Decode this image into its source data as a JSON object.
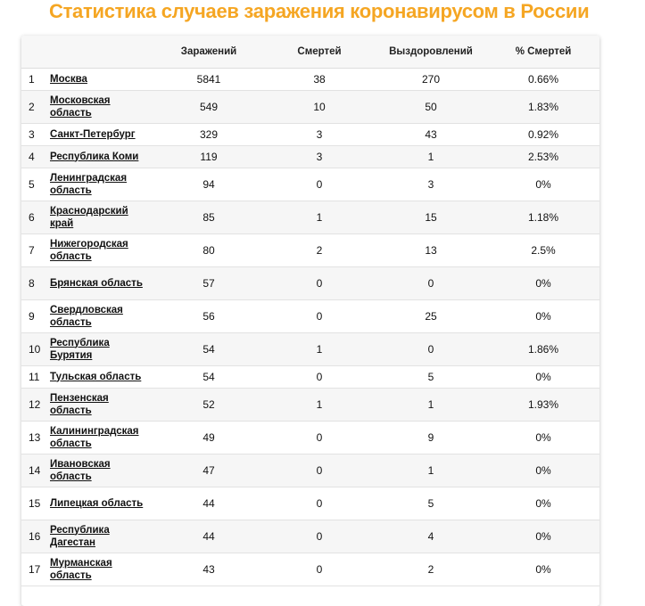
{
  "title": "Статистика случаев заражения коронавирусом в России",
  "table": {
    "headers": [
      "",
      "",
      "Заражений",
      "Смертей",
      "Выздоровлений",
      "% Смертей"
    ],
    "rows": [
      {
        "idx": "1",
        "region": "Москва",
        "infected": "5841",
        "deaths": "38",
        "recovered": "270",
        "death_rate": "0.66%"
      },
      {
        "idx": "2",
        "region": "Московская область",
        "infected": "549",
        "deaths": "10",
        "recovered": "50",
        "death_rate": "1.83%"
      },
      {
        "idx": "3",
        "region": "Санкт-Петербург",
        "infected": "329",
        "deaths": "3",
        "recovered": "43",
        "death_rate": "0.92%"
      },
      {
        "idx": "4",
        "region": "Республика Коми",
        "infected": "119",
        "deaths": "3",
        "recovered": "1",
        "death_rate": "2.53%"
      },
      {
        "idx": "5",
        "region": "Ленинградская область",
        "infected": "94",
        "deaths": "0",
        "recovered": "3",
        "death_rate": "0%"
      },
      {
        "idx": "6",
        "region": "Краснодарский край",
        "infected": "85",
        "deaths": "1",
        "recovered": "15",
        "death_rate": "1.18%"
      },
      {
        "idx": "7",
        "region": "Нижегородская область",
        "infected": "80",
        "deaths": "2",
        "recovered": "13",
        "death_rate": "2.5%"
      },
      {
        "idx": "8",
        "region": "Брянская область",
        "infected": "57",
        "deaths": "0",
        "recovered": "0",
        "death_rate": "0%"
      },
      {
        "idx": "9",
        "region": "Свердловская область",
        "infected": "56",
        "deaths": "0",
        "recovered": "25",
        "death_rate": "0%"
      },
      {
        "idx": "10",
        "region": "Республика Бурятия",
        "infected": "54",
        "deaths": "1",
        "recovered": "0",
        "death_rate": "1.86%"
      },
      {
        "idx": "11",
        "region": "Тульская область",
        "infected": "54",
        "deaths": "0",
        "recovered": "5",
        "death_rate": "0%"
      },
      {
        "idx": "12",
        "region": "Пензенская область",
        "infected": "52",
        "deaths": "1",
        "recovered": "1",
        "death_rate": "1.93%"
      },
      {
        "idx": "13",
        "region": "Калининградская область",
        "infected": "49",
        "deaths": "0",
        "recovered": "9",
        "death_rate": "0%"
      },
      {
        "idx": "14",
        "region": "Ивановская область",
        "infected": "47",
        "deaths": "0",
        "recovered": "1",
        "death_rate": "0%"
      },
      {
        "idx": "15",
        "region": "Липецкая область",
        "infected": "44",
        "deaths": "0",
        "recovered": "5",
        "death_rate": "0%"
      },
      {
        "idx": "16",
        "region": "Республика Дагестан",
        "infected": "44",
        "deaths": "0",
        "recovered": "4",
        "death_rate": "0%"
      },
      {
        "idx": "17",
        "region": "Мурманская область",
        "infected": "43",
        "deaths": "0",
        "recovered": "2",
        "death_rate": "0%"
      }
    ]
  },
  "colors": {
    "title": "#f5a623",
    "alt_row": "#f6f6f6",
    "header_bg": "#f7f7f7"
  }
}
